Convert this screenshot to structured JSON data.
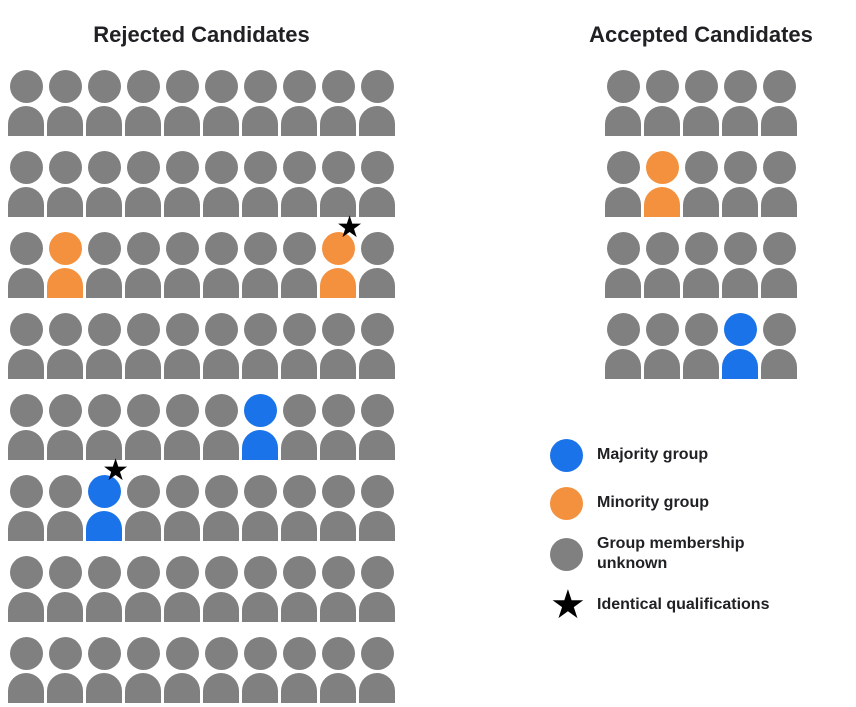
{
  "rejected": {
    "title": "Rejected Candidates",
    "columns": 10,
    "rows": [
      "GGGGGGGGGG",
      "GGGGGGGGGG",
      "GOGGGGGGOG",
      "GGGGGGGGGG",
      "GGGGGGBGGG",
      "GGBGGGGGGG",
      "GGGGGGGGGG",
      "GGGGGGGGGG"
    ],
    "stars": [
      [
        2,
        8
      ],
      [
        5,
        2
      ]
    ],
    "counts": {
      "total": 80,
      "majority": 2,
      "minority": 2,
      "unknown": 76
    }
  },
  "accepted": {
    "title": "Accepted Candidates",
    "columns": 5,
    "rows": [
      "GGGGG",
      "GOGGG",
      "GGGGG",
      "GGGBG"
    ],
    "stars": [],
    "counts": {
      "total": 20,
      "majority": 1,
      "minority": 1,
      "unknown": 18
    }
  },
  "colors": {
    "majority": "#1A73E8",
    "minority": "#F4913E",
    "unknown": "#808080",
    "star": "#000000"
  },
  "glyphs": {
    "star": "★"
  },
  "legend": {
    "items": [
      {
        "type": "circle",
        "color": "#1A73E8",
        "label": "Majority group"
      },
      {
        "type": "circle",
        "color": "#F4913E",
        "label": "Minority group"
      },
      {
        "type": "circle",
        "color": "#808080",
        "label": "Group membership unknown"
      },
      {
        "type": "star",
        "color": "#000000",
        "label": "Identical qualifications"
      }
    ]
  }
}
